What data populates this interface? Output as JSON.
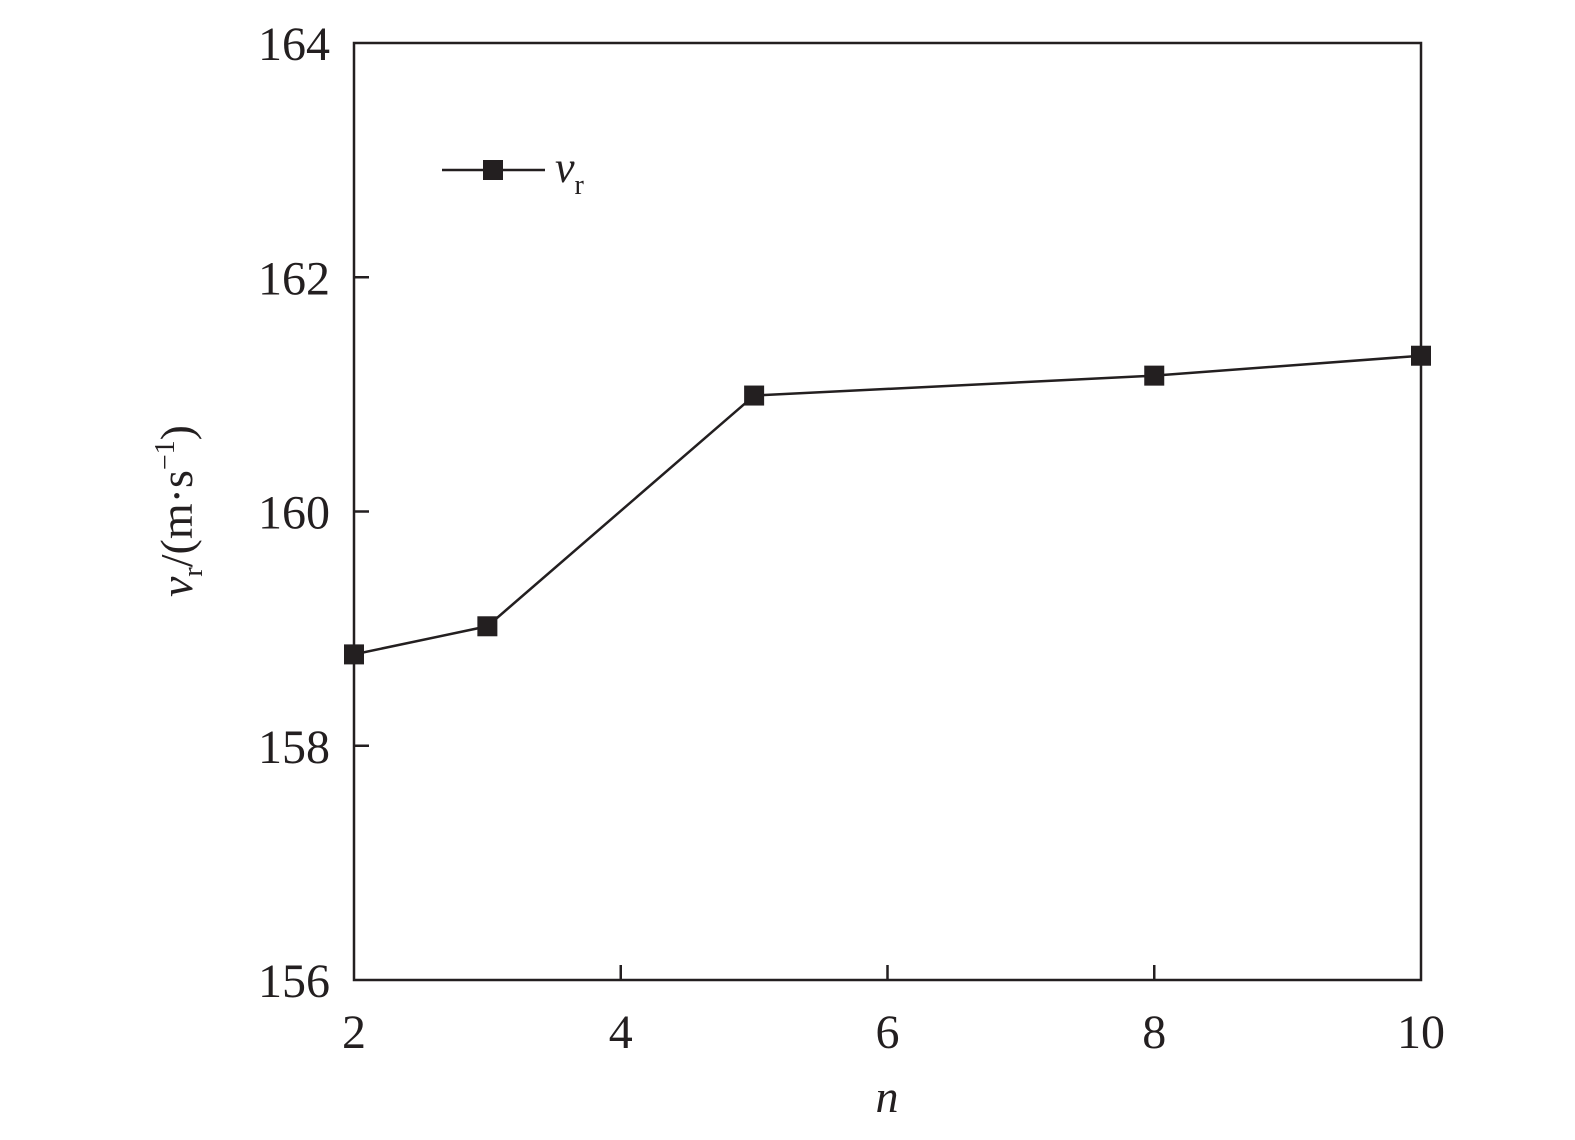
{
  "chart_data": {
    "type": "line",
    "title": "",
    "xlabel": "n",
    "ylabel": {
      "symbol": "v",
      "subscript": "r",
      "unit": "/(m·s",
      "unit_sup": "−1",
      "unit_close": ")"
    },
    "xlim": [
      2,
      10
    ],
    "ylim": [
      156,
      164
    ],
    "xticks": [
      2,
      4,
      6,
      8,
      10
    ],
    "yticks": [
      156,
      158,
      160,
      162,
      164
    ],
    "grid": false,
    "legend": {
      "placement": "top-left",
      "symbol": "v",
      "subscript": "r"
    },
    "series": [
      {
        "name": "vr",
        "marker": "square",
        "color": "#231f20",
        "x": [
          2,
          3,
          5,
          8,
          10
        ],
        "y": [
          158.78,
          159.02,
          160.99,
          161.16,
          161.33
        ]
      }
    ]
  }
}
